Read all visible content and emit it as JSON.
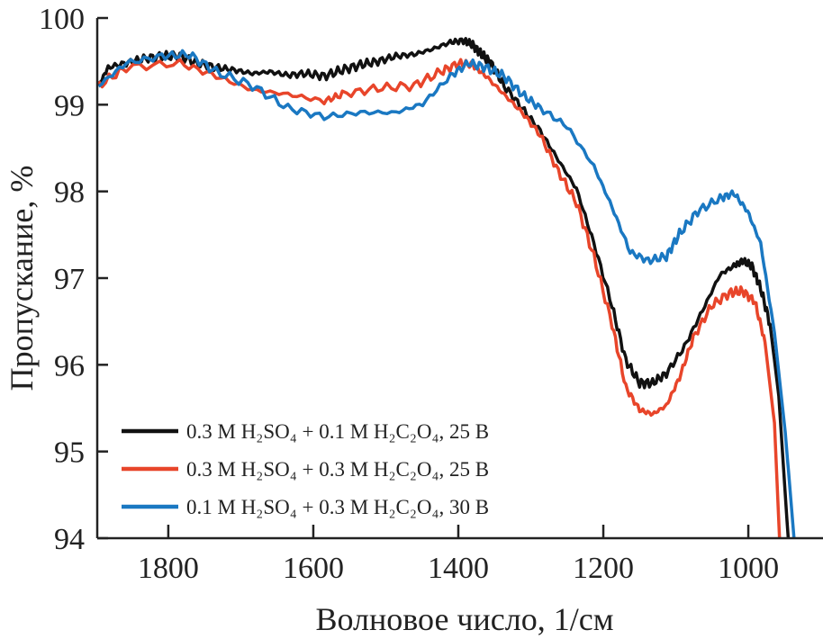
{
  "chart_data": {
    "type": "line",
    "title": "",
    "xlabel": "Волновое число, 1/см",
    "ylabel": "Пропускание, %",
    "xlim": [
      1898,
      897
    ],
    "ylim": [
      94,
      100
    ],
    "x_reversed": true,
    "grid": false,
    "legend_position": "bottom-left",
    "xticks": [
      1800,
      1600,
      1400,
      1200,
      1000
    ],
    "xtick_labels": [
      "1800",
      "1600",
      "1400",
      "1200",
      "1000"
    ],
    "yticks": [
      94,
      95,
      96,
      97,
      98,
      99,
      100
    ],
    "ytick_labels": [
      "94",
      "95",
      "96",
      "97",
      "98",
      "99",
      "100"
    ],
    "series": [
      {
        "name": "0.3 M H₂SO₄ + 0.1 M H₂C₂O₄, 25 B",
        "color": "#111111",
        "x": [
          1896,
          1883,
          1858,
          1834,
          1809,
          1784,
          1759,
          1734,
          1709,
          1684,
          1660,
          1635,
          1610,
          1585,
          1560,
          1535,
          1511,
          1486,
          1461,
          1436,
          1411,
          1393,
          1380,
          1368,
          1355,
          1337,
          1312,
          1287,
          1262,
          1237,
          1213,
          1188,
          1169,
          1150,
          1132,
          1113,
          1088,
          1063,
          1039,
          1020,
          1008,
          995,
          983,
          970,
          958,
          945
        ],
        "y": [
          99.22,
          99.43,
          99.48,
          99.53,
          99.56,
          99.56,
          99.48,
          99.43,
          99.4,
          99.36,
          99.38,
          99.34,
          99.36,
          99.33,
          99.4,
          99.46,
          99.5,
          99.56,
          99.58,
          99.64,
          99.72,
          99.74,
          99.69,
          99.58,
          99.48,
          99.22,
          98.96,
          98.7,
          98.36,
          98.03,
          97.4,
          96.68,
          96.05,
          95.79,
          95.79,
          95.9,
          96.21,
          96.63,
          97.04,
          97.14,
          97.2,
          97.14,
          96.88,
          96.47,
          95.64,
          94.0
        ]
      },
      {
        "name": "0.3 M H₂SO₄ + 0.3 M H₂C₂O₄, 25 B",
        "color": "#e8452a",
        "x": [
          1896,
          1858,
          1784,
          1734,
          1684,
          1635,
          1585,
          1560,
          1511,
          1461,
          1424,
          1399,
          1380,
          1362,
          1337,
          1312,
          1287,
          1262,
          1237,
          1213,
          1188,
          1169,
          1150,
          1132,
          1113,
          1095,
          1076,
          1051,
          1026,
          1008,
          991,
          977,
          964,
          957
        ],
        "y": [
          99.22,
          99.43,
          99.48,
          99.33,
          99.17,
          99.12,
          99.04,
          99.12,
          99.19,
          99.22,
          99.38,
          99.48,
          99.46,
          99.33,
          99.12,
          98.91,
          98.65,
          98.23,
          97.87,
          97.25,
          96.47,
          95.74,
          95.48,
          95.43,
          95.53,
          95.85,
          96.31,
          96.68,
          96.83,
          96.85,
          96.73,
          96.26,
          95.33,
          94.0
        ]
      },
      {
        "name": "0.1 M H₂SO₄ + 0.3 M H₂C₂O₄, 30 B",
        "color": "#1a78c2",
        "x": [
          1896,
          1858,
          1809,
          1771,
          1734,
          1684,
          1635,
          1585,
          1535,
          1486,
          1449,
          1411,
          1386,
          1362,
          1337,
          1312,
          1287,
          1250,
          1213,
          1188,
          1163,
          1138,
          1113,
          1095,
          1070,
          1039,
          1020,
          1001,
          983,
          964,
          949,
          937
        ],
        "y": [
          99.22,
          99.48,
          99.56,
          99.58,
          99.38,
          99.22,
          98.96,
          98.86,
          98.91,
          98.91,
          99.01,
          99.33,
          99.48,
          99.43,
          99.33,
          99.12,
          98.96,
          98.75,
          98.29,
          97.82,
          97.3,
          97.2,
          97.25,
          97.51,
          97.77,
          97.92,
          97.98,
          97.77,
          97.4,
          96.37,
          95.22,
          94.0
        ]
      }
    ]
  }
}
